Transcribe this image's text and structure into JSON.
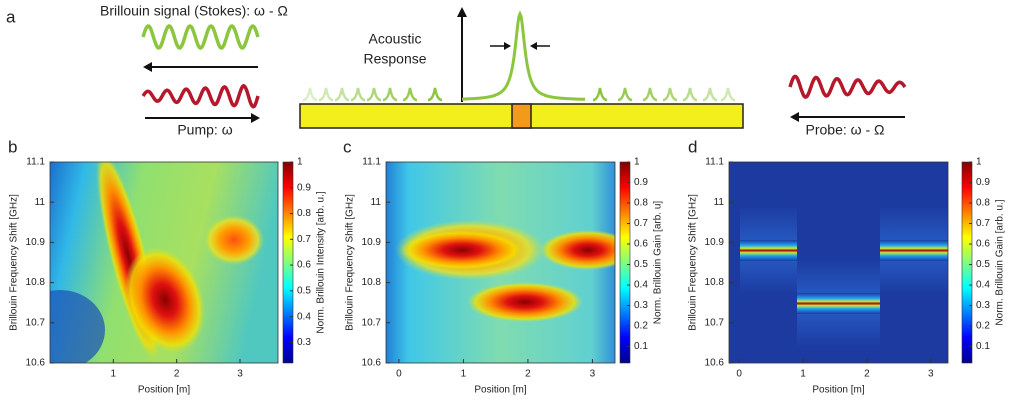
{
  "schematic": {
    "label": "a",
    "stokes": "Brillouin signal (Stokes): ω - Ω",
    "acoustic": [
      "Acoustic",
      "Response"
    ],
    "pump": "Pump: ω",
    "probe": "Probe: ω - Ω"
  },
  "panels": [
    {
      "label": "b",
      "xlabel": "Position [m]",
      "ylabel": "Brillouin Frequency Shift [GHz]",
      "xlim": [
        0,
        3.6
      ],
      "xticks": [
        1,
        2,
        3
      ],
      "ylim": [
        10.6,
        11.1
      ],
      "yticks": [
        10.6,
        10.7,
        10.8,
        10.9,
        11,
        11.1
      ],
      "colorbar": {
        "label": "Norm. Brillouin Intensity [arb. u.]",
        "lim": [
          0.22,
          1
        ],
        "ticks": [
          0.3,
          0.4,
          0.5,
          0.6,
          0.7,
          0.8,
          0.9,
          1
        ]
      }
    },
    {
      "label": "c",
      "xlabel": "Position [m]",
      "ylabel": "Brillouin Frequency Shift [GHz]",
      "xlim": [
        -0.2,
        3.35
      ],
      "xticks": [
        0,
        1,
        2,
        3
      ],
      "ylim": [
        10.6,
        11.1
      ],
      "yticks": [
        10.6,
        10.7,
        10.8,
        10.9,
        11,
        11.1
      ],
      "colorbar": {
        "label": "Norm. Brillouin Gain [arb. u]",
        "lim": [
          0.02,
          1
        ],
        "ticks": [
          0.1,
          0.2,
          0.3,
          0.4,
          0.5,
          0.6,
          0.7,
          0.8,
          0.9,
          1
        ]
      }
    },
    {
      "label": "d",
      "xlabel": "Position [m]",
      "ylabel": "Brillouin Frequency Shift [GHz]",
      "xlim": [
        -0.16,
        3.27
      ],
      "xticks": [
        0,
        1,
        2,
        3
      ],
      "ylim": [
        10.6,
        11.1
      ],
      "yticks": [
        10.6,
        10.7,
        10.8,
        10.9,
        11,
        11.1
      ],
      "colorbar": {
        "label": "Norm. Brillouin Gain [arb. u.]",
        "lim": [
          0.02,
          1
        ],
        "ticks": [
          0.1,
          0.2,
          0.3,
          0.4,
          0.5,
          0.6,
          0.7,
          0.8,
          0.9,
          1
        ]
      }
    }
  ]
}
